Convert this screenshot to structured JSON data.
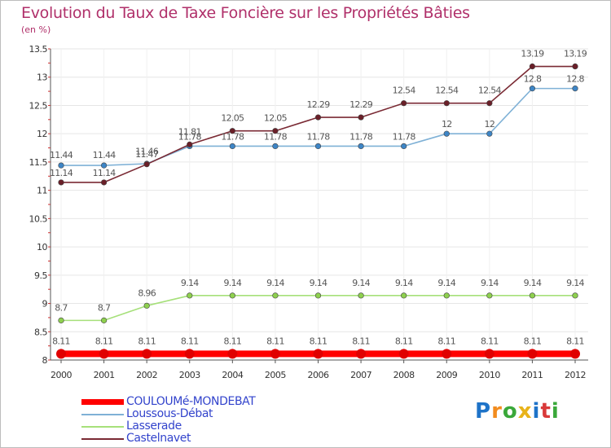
{
  "title": "Evolution du Taux de Taxe Foncière sur les Propriétés Bâties",
  "subtitle": "(en %)",
  "chart_data": {
    "type": "line",
    "title": "Evolution du Taux de Taxe Foncière sur les Propriétés Bâties",
    "ylabel": "(en %)",
    "xlabel": "",
    "ylim": [
      8,
      13.5
    ],
    "yticks": [
      "8",
      "8.5",
      "9",
      "9.5",
      "10",
      "10.5",
      "11",
      "11.5",
      "12",
      "12.5",
      "13",
      "13.5"
    ],
    "yticks_values": [
      8,
      8.5,
      9,
      9.5,
      10,
      10.5,
      11,
      11.5,
      12,
      12.5,
      13,
      13.5
    ],
    "categories": [
      "2000",
      "2001",
      "2002",
      "2003",
      "2004",
      "2005",
      "2006",
      "2007",
      "2008",
      "2009",
      "2010",
      "2011",
      "2012"
    ],
    "series": [
      {
        "name": "COULOUMé-MONDEBAT",
        "color": "#ff0000",
        "marker": "#e00000",
        "values": [
          8.11,
          8.11,
          8.11,
          8.11,
          8.11,
          8.11,
          8.11,
          8.11,
          8.11,
          8.11,
          8.11,
          8.11,
          8.11
        ],
        "labels": [
          "8.11",
          "8.11",
          "8.11",
          "8.11",
          "8.11",
          "8.11",
          "8.11",
          "8.11",
          "8.11",
          "8.11",
          "8.11",
          "8.11",
          "8.11"
        ]
      },
      {
        "name": "Loussous-Débat",
        "color": "#7fb1d6",
        "marker": "#3d85c6",
        "values": [
          11.44,
          11.44,
          11.47,
          11.78,
          11.78,
          11.78,
          11.78,
          11.78,
          11.78,
          12,
          12,
          12.8,
          12.8
        ],
        "labels": [
          "11.44",
          "11.44",
          "11.47",
          "11.78",
          "11.78",
          "11.78",
          "11.78",
          "11.78",
          "11.78",
          "12",
          "12",
          "12.8",
          "12.8"
        ]
      },
      {
        "name": "Lasserade",
        "color": "#a6e07a",
        "marker": "#8ed04e",
        "values": [
          8.7,
          8.7,
          8.96,
          9.14,
          9.14,
          9.14,
          9.14,
          9.14,
          9.14,
          9.14,
          9.14,
          9.14,
          9.14
        ],
        "labels": [
          "8.7",
          "8.7",
          "8.96",
          "9.14",
          "9.14",
          "9.14",
          "9.14",
          "9.14",
          "9.14",
          "9.14",
          "9.14",
          "9.14",
          "9.14"
        ]
      },
      {
        "name": "Castelnavet",
        "color": "#7a2a34",
        "marker": "#6a1f28",
        "values": [
          11.14,
          11.14,
          11.46,
          11.81,
          12.05,
          12.05,
          12.29,
          12.29,
          12.54,
          12.54,
          12.54,
          13.19,
          13.19
        ],
        "labels": [
          "11.14",
          "11.14",
          "11.46",
          "11.81",
          "12.05",
          "12.05",
          "12.29",
          "12.29",
          "12.54",
          "12.54",
          "12.54",
          "13.19",
          "13.19"
        ]
      }
    ],
    "legend_position": "bottom-left"
  },
  "legend": [
    {
      "name": "COULOUMé-MONDEBAT",
      "color": "#ff0000",
      "text_color": "#3344cc"
    },
    {
      "name": "Loussous-Débat",
      "color": "#7fb1d6",
      "text_color": "#3344cc"
    },
    {
      "name": "Lasserade",
      "color": "#a6e07a",
      "text_color": "#3344cc"
    },
    {
      "name": "Castelnavet",
      "color": "#7a2a34",
      "text_color": "#3344cc"
    }
  ],
  "logo": {
    "letters": [
      "P",
      "r",
      "o",
      "x",
      "i",
      "t",
      "i"
    ],
    "colors": [
      "#1e73c8",
      "#f28c1e",
      "#3aa83a",
      "#e8b31a",
      "#1e73c8",
      "#d93a3a",
      "#3aa83a"
    ]
  }
}
